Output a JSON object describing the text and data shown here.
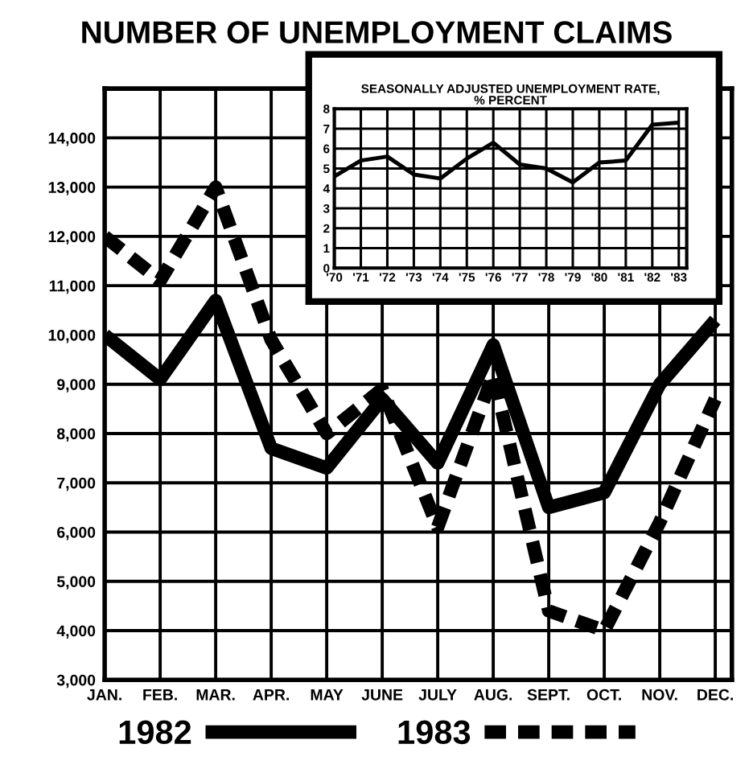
{
  "chart_data": [
    {
      "type": "line",
      "title": "NUMBER OF UNEMPLOYMENT CLAIMS",
      "categories": [
        "JAN.",
        "FEB.",
        "MAR.",
        "APR.",
        "MAY",
        "JUNE",
        "JULY",
        "AUG.",
        "SEPT.",
        "OCT.",
        "NOV.",
        "DEC."
      ],
      "series": [
        {
          "name": "1982",
          "color": "#000000",
          "line_style": "solid",
          "values": [
            10000,
            9100,
            10700,
            7700,
            7300,
            8700,
            7400,
            9800,
            6500,
            6800,
            9000,
            10300
          ]
        },
        {
          "name": "1983",
          "color": "#000000",
          "line_style": "dashed",
          "values": [
            12000,
            11100,
            13000,
            9900,
            8000,
            8900,
            6100,
            9200,
            4400,
            4000,
            6200,
            8700
          ]
        }
      ],
      "ylim": [
        3000,
        15000
      ],
      "yticks": [
        {
          "value": 3000,
          "label": "3,000"
        },
        {
          "value": 4000,
          "label": "4,000"
        },
        {
          "value": 5000,
          "label": "5,000"
        },
        {
          "value": 6000,
          "label": "6,000"
        },
        {
          "value": 7000,
          "label": "7,000"
        },
        {
          "value": 8000,
          "label": "8,000"
        },
        {
          "value": 9000,
          "label": "9,000"
        },
        {
          "value": 10000,
          "label": "10,000"
        },
        {
          "value": 11000,
          "label": "11,000"
        },
        {
          "value": 12000,
          "label": "12,000"
        },
        {
          "value": 13000,
          "label": "13,000"
        },
        {
          "value": 14000,
          "label": "14,000"
        },
        {
          "value": 15000,
          "label": null
        }
      ],
      "grid": true,
      "legend": "bottom",
      "marker": "none"
    },
    {
      "type": "line",
      "title": "SEASONALLY ADJUSTED UNEMPLOYMENT RATE,\n% PERCENT",
      "categories": [
        "'70",
        "'71",
        "'72",
        "'73",
        "'74",
        "'75",
        "'76",
        "'77",
        "'78",
        "'79",
        "'80",
        "'81",
        "'82",
        "'83"
      ],
      "series": [
        {
          "color": "#000000",
          "values": [
            4.6,
            5.4,
            5.6,
            4.7,
            4.5,
            5.5,
            6.3,
            5.2,
            5.0,
            4.3,
            5.3,
            5.4,
            7.2,
            7.3
          ]
        }
      ],
      "ylim": [
        0,
        8
      ],
      "yticks": [
        0,
        1,
        2,
        3,
        4,
        5,
        6,
        7,
        8
      ],
      "grid": true,
      "marker": "none"
    }
  ]
}
